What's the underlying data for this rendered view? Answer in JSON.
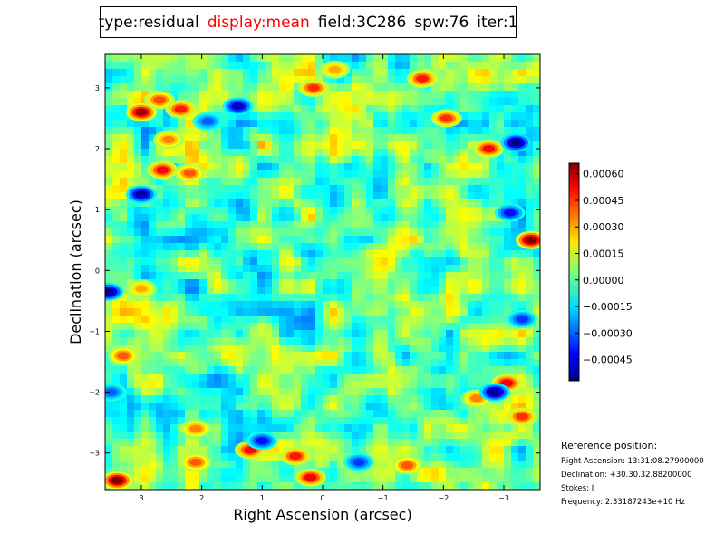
{
  "title_parts": [
    {
      "text": "type:residual",
      "color": "#000000"
    },
    {
      "text": "display:mean",
      "color": "#ff0000"
    },
    {
      "text": "field:3C286",
      "color": "#000000"
    },
    {
      "text": "spw:76",
      "color": "#000000"
    },
    {
      "text": "iter:1",
      "color": "#000000"
    }
  ],
  "chart_data": {
    "type": "heatmap",
    "colormap": "jet",
    "xlabel": "Right Ascension (arcsec)",
    "ylabel": "Declination (arcsec)",
    "xlim": [
      3.6,
      -3.6
    ],
    "ylim": [
      -3.6,
      3.55
    ],
    "x_ticks": [
      3,
      2,
      1,
      0,
      -1,
      -2,
      -3
    ],
    "x_tick_labels": [
      "3",
      "2",
      "1",
      "0",
      "−1",
      "−2",
      "−3"
    ],
    "y_ticks": [
      3,
      2,
      1,
      0,
      -1,
      -2,
      -3
    ],
    "y_tick_labels": [
      "3",
      "2",
      "1",
      "0",
      "−1",
      "−2",
      "−3"
    ],
    "colorbar": {
      "vmin": -0.00057,
      "vmax": 0.00066,
      "ticks": [
        0.0006,
        0.00045,
        0.0003,
        0.00015,
        0.0,
        -0.00015,
        -0.0003,
        -0.00045
      ],
      "tick_labels": [
        "0.00060",
        "0.00045",
        "0.00030",
        "0.00015",
        "0.00000",
        "−0.00015",
        "−0.00030",
        "−0.00045"
      ]
    },
    "hotspots": [
      {
        "x": 3.0,
        "y": 2.6,
        "value": 0.00062
      },
      {
        "x": 2.35,
        "y": 2.65,
        "value": 0.00048
      },
      {
        "x": 2.7,
        "y": 2.8,
        "value": 0.00042
      },
      {
        "x": 2.65,
        "y": 1.65,
        "value": 0.00052
      },
      {
        "x": 2.2,
        "y": 1.6,
        "value": 0.0004
      },
      {
        "x": 2.55,
        "y": 2.15,
        "value": 0.00035
      },
      {
        "x": 3.4,
        "y": -3.45,
        "value": 0.00066
      },
      {
        "x": 0.2,
        "y": -3.4,
        "value": 0.00052
      },
      {
        "x": 0.45,
        "y": -3.05,
        "value": 0.00048
      },
      {
        "x": 1.2,
        "y": -2.95,
        "value": 0.0005
      },
      {
        "x": 2.1,
        "y": -2.6,
        "value": 0.00035
      },
      {
        "x": 2.1,
        "y": -3.15,
        "value": 0.0004
      },
      {
        "x": 3.3,
        "y": -1.4,
        "value": 0.0004
      },
      {
        "x": 0.15,
        "y": 3.0,
        "value": 0.00045
      },
      {
        "x": -0.2,
        "y": 3.3,
        "value": 0.0003
      },
      {
        "x": -1.65,
        "y": 3.15,
        "value": 0.00048
      },
      {
        "x": -2.05,
        "y": 2.5,
        "value": 0.00045
      },
      {
        "x": -2.75,
        "y": 2.0,
        "value": 0.0005
      },
      {
        "x": -3.45,
        "y": 0.5,
        "value": 0.00066
      },
      {
        "x": -3.05,
        "y": -1.85,
        "value": 0.00052
      },
      {
        "x": -3.3,
        "y": -2.4,
        "value": 0.00045
      },
      {
        "x": -2.55,
        "y": -2.1,
        "value": 0.00035
      },
      {
        "x": -1.4,
        "y": -3.2,
        "value": 0.0004
      },
      {
        "x": 3.0,
        "y": -0.3,
        "value": 0.0003
      },
      {
        "x": 1.4,
        "y": 2.7,
        "value": -0.00048
      },
      {
        "x": 3.0,
        "y": 1.25,
        "value": -0.00052
      },
      {
        "x": 3.55,
        "y": -0.35,
        "value": -0.00055
      },
      {
        "x": -3.2,
        "y": 2.1,
        "value": -0.00057
      },
      {
        "x": -2.85,
        "y": -2.0,
        "value": -0.00055
      },
      {
        "x": -3.1,
        "y": 0.95,
        "value": -0.0004
      },
      {
        "x": 1.0,
        "y": -2.8,
        "value": -0.0004
      },
      {
        "x": -0.6,
        "y": -3.15,
        "value": -0.00035
      },
      {
        "x": 1.9,
        "y": 2.45,
        "value": -0.0003
      },
      {
        "x": 3.5,
        "y": -2.0,
        "value": -0.0003
      },
      {
        "x": -3.3,
        "y": -0.8,
        "value": -0.00035
      }
    ]
  },
  "reference": {
    "heading": "Reference position:",
    "right_ascension": "Right Ascension: 13:31:08.27900000",
    "declination": "Declination: +30.30.32.88200000",
    "stokes": "Stokes: I",
    "frequency": "Frequency: 2.33187243e+10 Hz"
  }
}
